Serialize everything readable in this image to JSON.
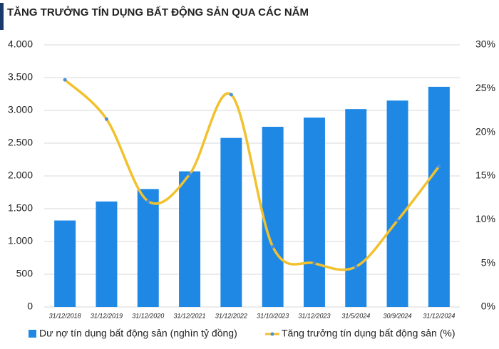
{
  "chart_data": {
    "type": "bar",
    "title": "TĂNG TRƯỞNG TÍN DỤNG BẤT ĐỘNG SẢN QUA CÁC NĂM",
    "categories": [
      "31/12/2018",
      "31/12/2019",
      "31/12/2020",
      "31/12/2021",
      "31/12/2022",
      "31/10/2023",
      "31/12/2023",
      "31/5/2024",
      "30/9/2024",
      "31/12/2024"
    ],
    "series": [
      {
        "name": "Dư nợ tín dụng bất động sản (nghìn tỷ đồng)",
        "type": "bar",
        "color": "#1f88e5",
        "values": [
          1320,
          1610,
          1800,
          2070,
          2580,
          2750,
          2890,
          3020,
          3150,
          3360
        ]
      },
      {
        "name": "Tăng trưởng tín dụng bất động sản (%)",
        "type": "line",
        "axis": "y2",
        "color": "#f2c12e",
        "marker_color": "#4a90d9",
        "values": [
          26,
          21.5,
          12.1,
          15.2,
          24.3,
          6.9,
          5,
          4.6,
          9.9,
          16.1
        ]
      }
    ],
    "ylim": [
      0,
      4000
    ],
    "yticks": [
      0,
      500,
      {
        "value": 1000,
        "label": "1.000"
      },
      {
        "value": 1500,
        "label": "1.500"
      },
      {
        "value": 2000,
        "label": "2.000"
      },
      {
        "value": 2500,
        "label": "2.500"
      },
      {
        "value": 3000,
        "label": "3.000"
      },
      {
        "value": 3500,
        "label": "3.500"
      },
      {
        "value": 4000,
        "label": "4.000"
      }
    ],
    "y2lim": [
      0,
      30
    ],
    "y2ticks": [
      {
        "value": 0,
        "label": "0%"
      },
      {
        "value": 5,
        "label": "5%"
      },
      {
        "value": 10,
        "label": "10%"
      },
      {
        "value": 15,
        "label": "15%"
      },
      {
        "value": 20,
        "label": "20%"
      },
      {
        "value": 25,
        "label": "25%"
      },
      {
        "value": 30,
        "label": "30%"
      }
    ],
    "grid": true
  }
}
